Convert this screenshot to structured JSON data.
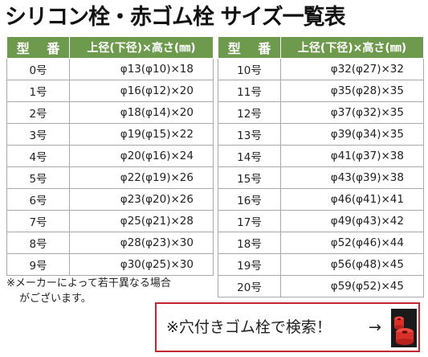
{
  "title": "シリコン栓・赤ゴム栓 サイズ一覧表",
  "headers": {
    "type": "型 番",
    "size": "上径(下径)×高さ(㎜)"
  },
  "left_rows": [
    {
      "type": "0号",
      "size": "φ13(φ10)×18"
    },
    {
      "type": "1号",
      "size": "φ16(φ12)×20"
    },
    {
      "type": "2号",
      "size": "φ18(φ14)×20"
    },
    {
      "type": "3号",
      "size": "φ19(φ15)×22"
    },
    {
      "type": "4号",
      "size": "φ20(φ16)×24"
    },
    {
      "type": "5号",
      "size": "φ22(φ19)×26"
    },
    {
      "type": "6号",
      "size": "φ23(φ20)×26"
    },
    {
      "type": "7号",
      "size": "φ25(φ21)×28"
    },
    {
      "type": "8号",
      "size": "φ28(φ23)×30"
    },
    {
      "type": "9号",
      "size": "φ30(φ25)×30"
    }
  ],
  "right_rows": [
    {
      "type": "10号",
      "size": "φ32(φ27)×32"
    },
    {
      "type": "11号",
      "size": "φ35(φ28)×35"
    },
    {
      "type": "12号",
      "size": "φ37(φ32)×35"
    },
    {
      "type": "13号",
      "size": "φ39(φ34)×35"
    },
    {
      "type": "14号",
      "size": "φ41(φ37)×38"
    },
    {
      "type": "15号",
      "size": "φ43(φ39)×38"
    },
    {
      "type": "16号",
      "size": "φ46(φ41)×41"
    },
    {
      "type": "17号",
      "size": "φ49(φ43)×42"
    },
    {
      "type": "18号",
      "size": "φ52(φ46)×44"
    },
    {
      "type": "19号",
      "size": "φ56(φ48)×45"
    },
    {
      "type": "20号",
      "size": "φ59(φ52)×45"
    }
  ],
  "note": {
    "line1": "※メーカーによって若干異なる場合",
    "line2": "がございます。"
  },
  "search": {
    "label": "※穴付きゴム栓で検索！",
    "arrow": "→",
    "thumb_icon": "red-rubber-stopper-thumbnail"
  },
  "colors": {
    "header_bg": "#6d9a4c",
    "search_border": "#c5282c",
    "stopper": "#e8332a"
  }
}
